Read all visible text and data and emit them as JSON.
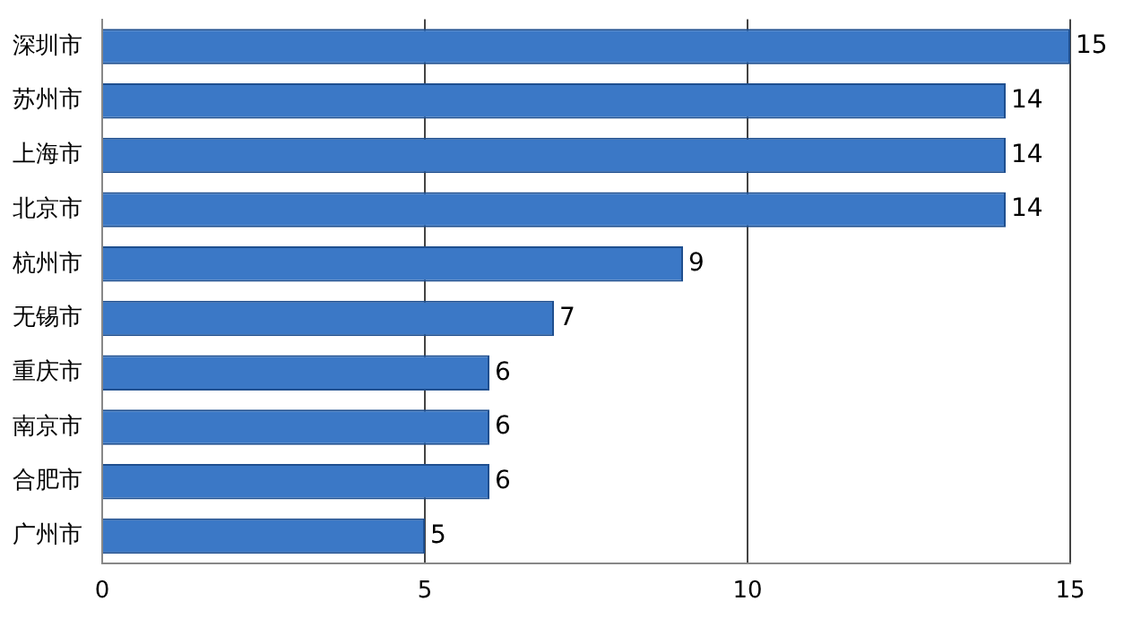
{
  "chart_data": {
    "type": "bar",
    "orientation": "horizontal",
    "categories": [
      "深圳市",
      "苏州市",
      "上海市",
      "北京市",
      "杭州市",
      "无锡市",
      "重庆市",
      "南京市",
      "合肥市",
      "广州市"
    ],
    "values": [
      15,
      14,
      14,
      14,
      9,
      7,
      6,
      6,
      6,
      5
    ],
    "color": "#3b78c6",
    "xlim": [
      0,
      15
    ],
    "xticks": [
      0,
      5,
      10,
      15
    ],
    "grid": "x",
    "data_labels": true
  }
}
